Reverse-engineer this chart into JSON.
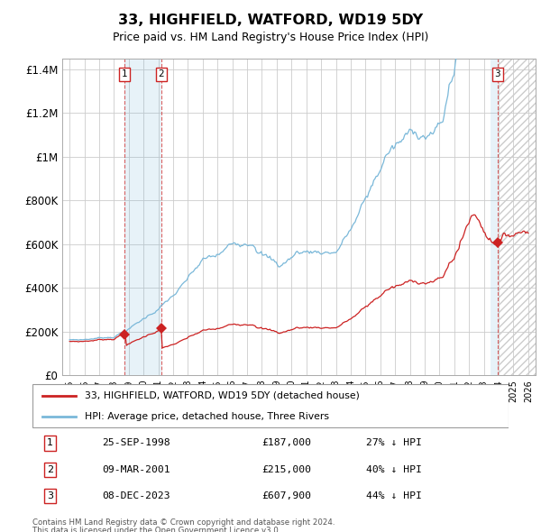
{
  "title": "33, HIGHFIELD, WATFORD, WD19 5DY",
  "subtitle": "Price paid vs. HM Land Registry's House Price Index (HPI)",
  "legend_line1": "33, HIGHFIELD, WATFORD, WD19 5DY (detached house)",
  "legend_line2": "HPI: Average price, detached house, Three Rivers",
  "footer1": "Contains HM Land Registry data © Crown copyright and database right 2024.",
  "footer2": "This data is licensed under the Open Government Licence v3.0.",
  "transactions": [
    {
      "num": 1,
      "date": "25-SEP-1998",
      "price": 187000,
      "pct": "27% ↓ HPI",
      "year": 1998.73
    },
    {
      "num": 2,
      "date": "09-MAR-2001",
      "price": 215000,
      "pct": "40% ↓ HPI",
      "year": 2001.18
    },
    {
      "num": 3,
      "date": "08-DEC-2023",
      "price": 607900,
      "pct": "44% ↓ HPI",
      "year": 2023.93
    }
  ],
  "ylim": [
    0,
    1450000
  ],
  "yticks": [
    0,
    200000,
    400000,
    600000,
    800000,
    1000000,
    1200000,
    1400000
  ],
  "ytick_labels": [
    "£0",
    "£200K",
    "£400K",
    "£600K",
    "£800K",
    "£1M",
    "£1.2M",
    "£1.4M"
  ],
  "hpi_color": "#7ab8d9",
  "price_color": "#cc2222",
  "highlight_color": "#dceeff",
  "transaction_box_color": "#cc2222",
  "grid_color": "#cccccc",
  "bg_color": "#ffffff",
  "xlim_left": 1994.5,
  "xlim_right": 2026.5
}
